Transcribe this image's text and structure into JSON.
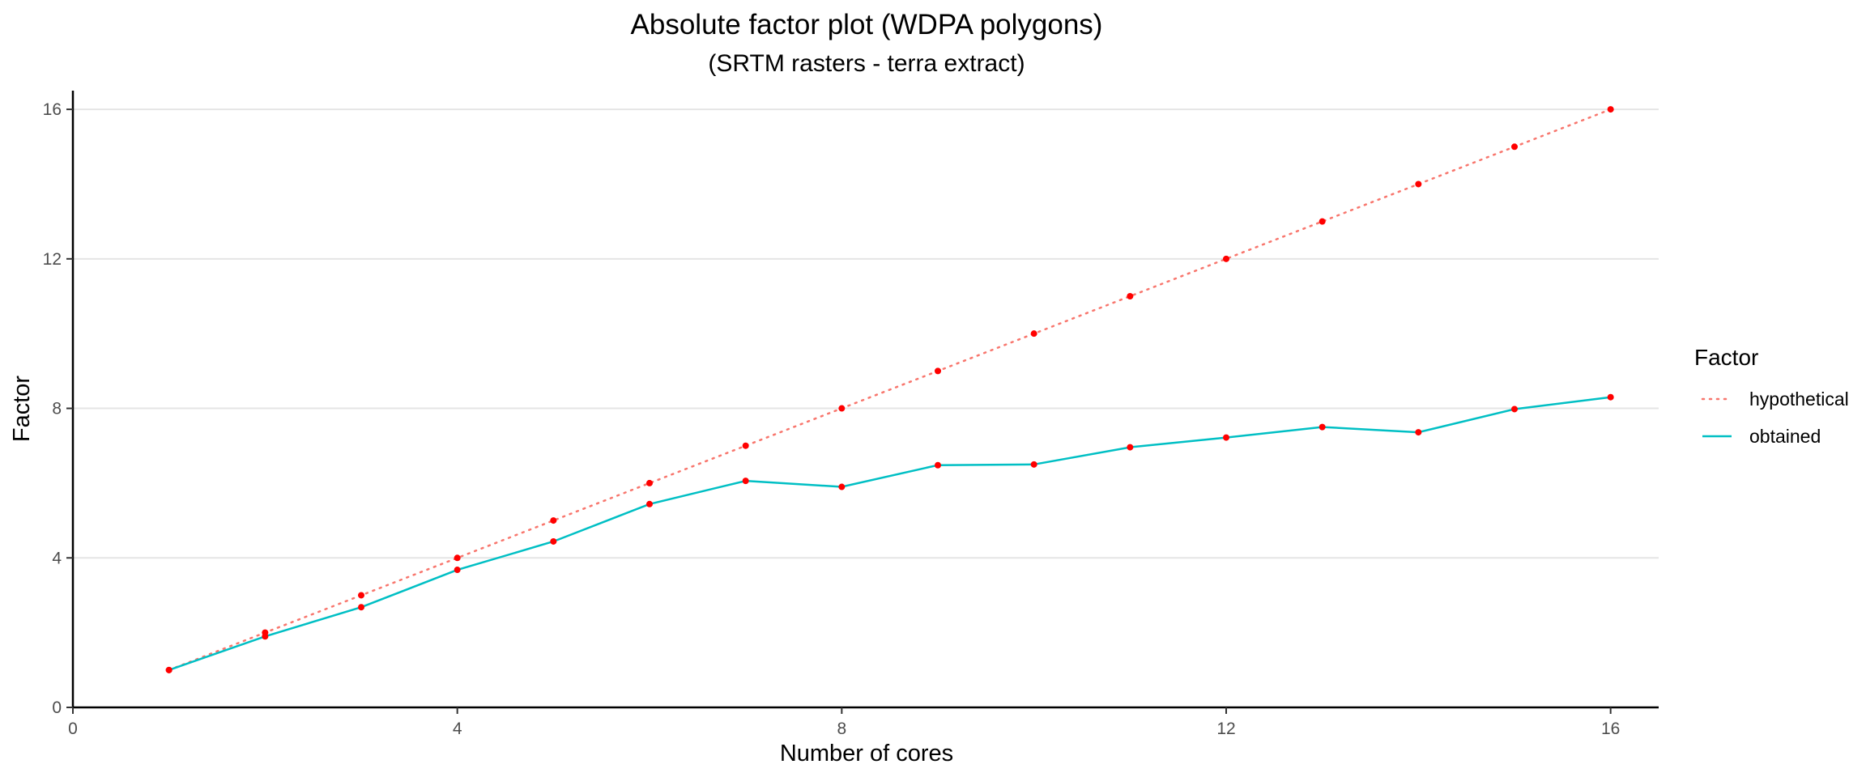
{
  "chart_data": {
    "type": "line",
    "title": "Absolute factor plot (WDPA polygons)",
    "subtitle": "(SRTM rasters - terra extract)",
    "xlabel": "Number of cores",
    "ylabel": "Factor",
    "xlim": [
      0,
      16.5
    ],
    "ylim": [
      0,
      16.5
    ],
    "x_ticks": [
      0,
      4,
      8,
      12,
      16
    ],
    "y_ticks": [
      0,
      4,
      8,
      12,
      16
    ],
    "grid": "horizontal major only",
    "legend": {
      "title": "Factor",
      "placement": "right",
      "entries": [
        {
          "label": "hypothetical",
          "color": "#F8766D",
          "style": "dotted"
        },
        {
          "label": "obtained",
          "color": "#00BFC4",
          "style": "solid"
        }
      ]
    },
    "point_color": "#FF0000",
    "series": [
      {
        "name": "hypothetical",
        "color": "#F8766D",
        "style": "dotted",
        "x": [
          1,
          2,
          3,
          4,
          5,
          6,
          7,
          8,
          9,
          10,
          11,
          12,
          13,
          14,
          15,
          16
        ],
        "values": [
          1,
          2,
          3,
          4,
          5,
          6,
          7,
          8,
          9,
          10,
          11,
          12,
          13,
          14,
          15,
          16
        ]
      },
      {
        "name": "obtained",
        "color": "#00BFC4",
        "style": "solid",
        "x": [
          1,
          2,
          3,
          4,
          5,
          6,
          7,
          8,
          9,
          10,
          11,
          12,
          13,
          14,
          15,
          16
        ],
        "values": [
          1.0,
          1.9,
          2.68,
          3.68,
          4.44,
          5.44,
          6.06,
          5.9,
          6.48,
          6.5,
          6.96,
          7.22,
          7.5,
          7.36,
          7.98,
          8.3
        ]
      }
    ]
  }
}
